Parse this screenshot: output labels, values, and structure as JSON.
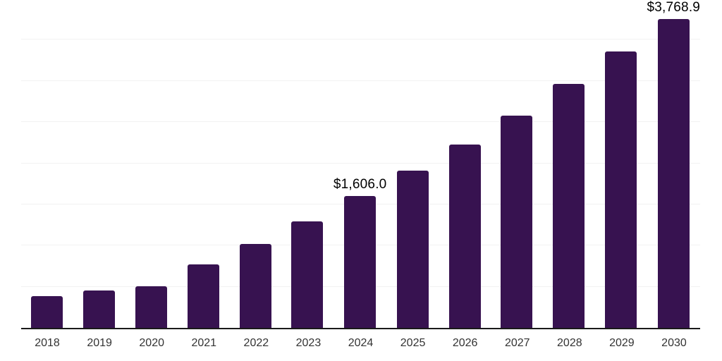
{
  "chart_data": {
    "type": "bar",
    "title": "",
    "xlabel": "",
    "ylabel": "",
    "categories": [
      "2018",
      "2019",
      "2020",
      "2021",
      "2022",
      "2023",
      "2024",
      "2025",
      "2026",
      "2027",
      "2028",
      "2029",
      "2030"
    ],
    "values": [
      385,
      453,
      504,
      770,
      1017,
      1290,
      1606.0,
      1906,
      2231,
      2581,
      2960,
      3359,
      3768.9
    ],
    "data_labels": {
      "2024": "$1,606.0",
      "2030": "$3,768.9"
    },
    "ylim": [
      0,
      4000
    ],
    "gridline_step": 500,
    "grid": "horizontal",
    "legend": "none",
    "colors": {
      "bar": "#371250",
      "axis_line": "#1a1a1a",
      "gridline": "#f2f2f2",
      "value_label_text": "#000000",
      "x_tick_text": "#333333",
      "background": "#ffffff"
    }
  }
}
